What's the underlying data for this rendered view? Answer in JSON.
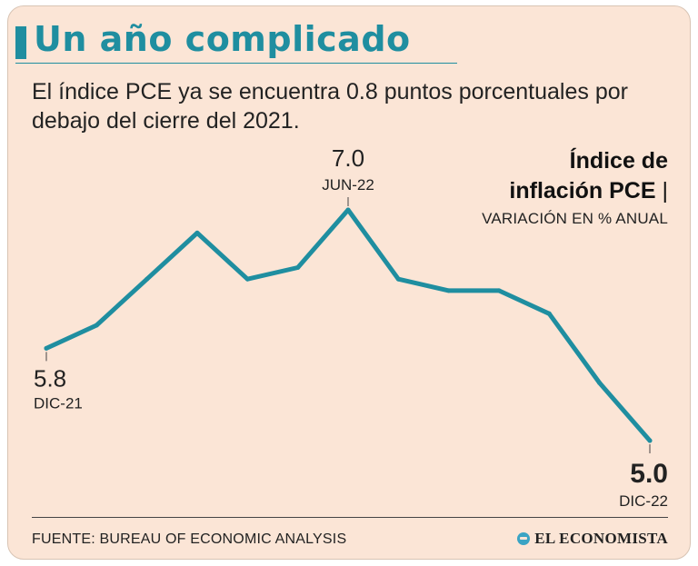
{
  "header": {
    "title": "Un año complicado",
    "subtitle": "El índice PCE ya se encuentra 0.8 puntos porcentuales por debajo del cierre del 2021."
  },
  "legend": {
    "title_line1": "Índice de",
    "title_line2": "inflación PCE",
    "separator": "|",
    "unit": "VARIACIÓN EN % ANUAL"
  },
  "chart_data": {
    "type": "line",
    "series": [
      {
        "values": [
          5.8,
          6.0,
          6.4,
          6.8,
          6.4,
          6.5,
          7.0,
          6.4,
          6.3,
          6.3,
          6.1,
          5.5,
          5.0
        ]
      }
    ],
    "line_color": "#1f8ea0",
    "annotations": [
      {
        "index": 0,
        "value": "5.8",
        "label": "DIC-21",
        "emphasis": false
      },
      {
        "index": 6,
        "value": "7.0",
        "label": "JUN-22",
        "emphasis": false
      },
      {
        "index": 12,
        "value": "5.0",
        "label": "DIC-22",
        "emphasis": true
      }
    ],
    "ylim": [
      5.0,
      7.0
    ],
    "grid": false
  },
  "footer": {
    "source": "FUENTE: BUREAU OF ECONOMIC ANALYSIS",
    "brand": "EL ECONOMISTA"
  },
  "colors": {
    "accent": "#1f8ea0",
    "background": "#fbe5d6"
  }
}
